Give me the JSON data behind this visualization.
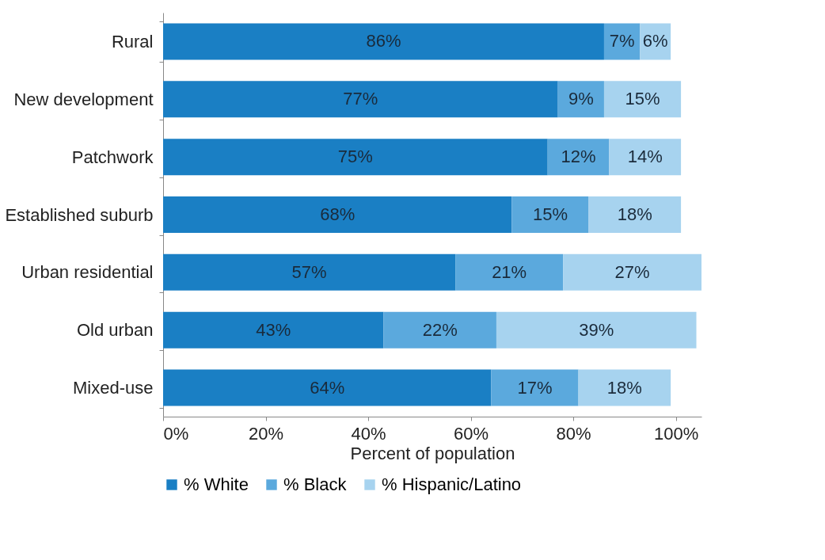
{
  "chart_data": {
    "type": "bar",
    "orientation": "horizontal",
    "stacked": true,
    "xlabel": "Percent of population",
    "categories": [
      "Rural",
      "New development",
      "Patchwork",
      "Established suburb",
      "Urban residential",
      "Old urban",
      "Mixed-use"
    ],
    "series": [
      {
        "name": "% White",
        "color": "#1a7fc4",
        "values": [
          86,
          77,
          75,
          68,
          57,
          43,
          64
        ],
        "value_labels": [
          "86%",
          "77%",
          "75%",
          "68%",
          "57%",
          "43%",
          "64%"
        ]
      },
      {
        "name": "% Black",
        "color": "#5ba9dd",
        "values": [
          7,
          9,
          12,
          15,
          21,
          22,
          17
        ],
        "value_labels": [
          "7%",
          "9%",
          "12%",
          "15%",
          "21%",
          "22%",
          "17%"
        ]
      },
      {
        "name": "% Hispanic/Latino",
        "color": "#a7d3ef",
        "values": [
          6,
          15,
          14,
          18,
          27,
          39,
          18
        ],
        "value_labels": [
          "6%",
          "15%",
          "14%",
          "18%",
          "27%",
          "39%",
          "18%"
        ]
      }
    ],
    "xlim": [
      0,
      105
    ],
    "xticks": [
      {
        "value": 0,
        "label": "0%"
      },
      {
        "value": 20,
        "label": "20%"
      },
      {
        "value": 40,
        "label": "40%"
      },
      {
        "value": 60,
        "label": "60%"
      },
      {
        "value": 80,
        "label": "80%"
      },
      {
        "value": 100,
        "label": "100%"
      }
    ],
    "grid": false,
    "legend": "bottom"
  }
}
